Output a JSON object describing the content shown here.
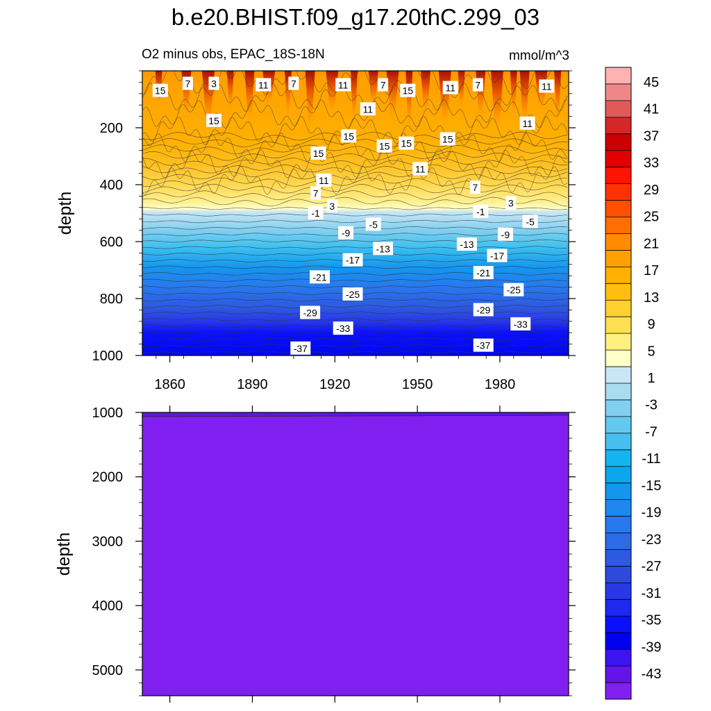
{
  "chart_data": {
    "type": "contour",
    "title": "b.e20.BHIST.f09_g17.20thC.299_03",
    "subtitle": "O2 minus obs, EPAC_18S-18N",
    "units": "mmol/m^3",
    "upper_panel": {
      "ylabel": "depth",
      "ylim": [
        0,
        1000
      ],
      "yticks": [
        200,
        400,
        600,
        800,
        1000
      ],
      "xlim": [
        1850,
        2005
      ],
      "xticks": [
        1860,
        1890,
        1920,
        1950,
        1980
      ],
      "zero_crossing_depth": 490,
      "contour_labels": [
        {
          "v": "15",
          "x": 1856.5,
          "d": 70
        },
        {
          "v": "7",
          "x": 1866.5,
          "d": 45
        },
        {
          "v": "3",
          "x": 1876,
          "d": 45
        },
        {
          "v": "11",
          "x": 1894,
          "d": 50
        },
        {
          "v": "7",
          "x": 1905,
          "d": 45
        },
        {
          "v": "11",
          "x": 1923,
          "d": 50
        },
        {
          "v": "7",
          "x": 1937.5,
          "d": 50
        },
        {
          "v": "15",
          "x": 1946.5,
          "d": 70
        },
        {
          "v": "11",
          "x": 1962,
          "d": 60
        },
        {
          "v": "7",
          "x": 1972,
          "d": 50
        },
        {
          "v": "11",
          "x": 1997,
          "d": 55
        },
        {
          "v": "15",
          "x": 1876,
          "d": 175
        },
        {
          "v": "11",
          "x": 1932,
          "d": 135
        },
        {
          "v": "11",
          "x": 1990,
          "d": 185
        },
        {
          "v": "15",
          "x": 1925,
          "d": 230
        },
        {
          "v": "15",
          "x": 1938,
          "d": 265
        },
        {
          "v": "15",
          "x": 1946,
          "d": 255
        },
        {
          "v": "15",
          "x": 1961,
          "d": 240
        },
        {
          "v": "15",
          "x": 1914,
          "d": 290
        },
        {
          "v": "11",
          "x": 1951,
          "d": 345
        },
        {
          "v": "11",
          "x": 1916,
          "d": 385
        },
        {
          "v": "7",
          "x": 1913,
          "d": 430
        },
        {
          "v": "7",
          "x": 1971,
          "d": 410
        },
        {
          "v": "3",
          "x": 1919,
          "d": 475
        },
        {
          "v": "3",
          "x": 1984,
          "d": 465
        },
        {
          "v": "-1",
          "x": 1913,
          "d": 500
        },
        {
          "v": "-1",
          "x": 1973,
          "d": 495
        },
        {
          "v": "-5",
          "x": 1934,
          "d": 540
        },
        {
          "v": "-5",
          "x": 1991,
          "d": 530
        },
        {
          "v": "-9",
          "x": 1924,
          "d": 570
        },
        {
          "v": "-9",
          "x": 1982,
          "d": 575
        },
        {
          "v": "-13",
          "x": 1937.5,
          "d": 625
        },
        {
          "v": "-13",
          "x": 1968,
          "d": 610
        },
        {
          "v": "-17",
          "x": 1926.5,
          "d": 665
        },
        {
          "v": "-17",
          "x": 1979,
          "d": 650
        },
        {
          "v": "-21",
          "x": 1914.5,
          "d": 725
        },
        {
          "v": "-21",
          "x": 1974,
          "d": 710
        },
        {
          "v": "-25",
          "x": 1926.5,
          "d": 785
        },
        {
          "v": "-25",
          "x": 1985,
          "d": 770
        },
        {
          "v": "-29",
          "x": 1911,
          "d": 850
        },
        {
          "v": "-29",
          "x": 1974,
          "d": 840
        },
        {
          "v": "-33",
          "x": 1923,
          "d": 905
        },
        {
          "v": "-33",
          "x": 1987.5,
          "d": 890
        },
        {
          "v": "-37",
          "x": 1907.5,
          "d": 975
        },
        {
          "v": "-37",
          "x": 1974,
          "d": 965
        }
      ]
    },
    "lower_panel": {
      "ylabel": "depth",
      "ylim": [
        1000,
        5400
      ],
      "yticks": [
        1000,
        2000,
        3000,
        4000,
        5000
      ],
      "xlim": [
        1850,
        2005
      ],
      "value_range": "below -45"
    },
    "colorbar": {
      "labels": [
        "45",
        "41",
        "37",
        "33",
        "29",
        "25",
        "21",
        "17",
        "13",
        "9",
        "5",
        "1",
        "-3",
        "-7",
        "-11",
        "-15",
        "-19",
        "-23",
        "-27",
        "-31",
        "-35",
        "-39",
        "-43"
      ],
      "colors": [
        "#FFB2B2",
        "#EE8888",
        "#E05A5A",
        "#D42828",
        "#CC0000",
        "#E00000",
        "#FF1400",
        "#FF3200",
        "#FF5000",
        "#FF6E00",
        "#FF8C00",
        "#FFA000",
        "#FFB000",
        "#FFBE10",
        "#FFD030",
        "#FFE050",
        "#FFF080",
        "#FFFFC8",
        "#C8E6F5",
        "#AADCF0",
        "#82D0F0",
        "#64C8F0",
        "#46BEF0",
        "#14B4F0",
        "#0AA6EE",
        "#1496EE",
        "#1E88EE",
        "#2878EE",
        "#2D6AE6",
        "#2D5AE0",
        "#2D4ADC",
        "#2838E6",
        "#1E28F0",
        "#0A10FA",
        "#0000F0",
        "#3C14F0",
        "#6414E8",
        "#8020F0"
      ]
    }
  }
}
